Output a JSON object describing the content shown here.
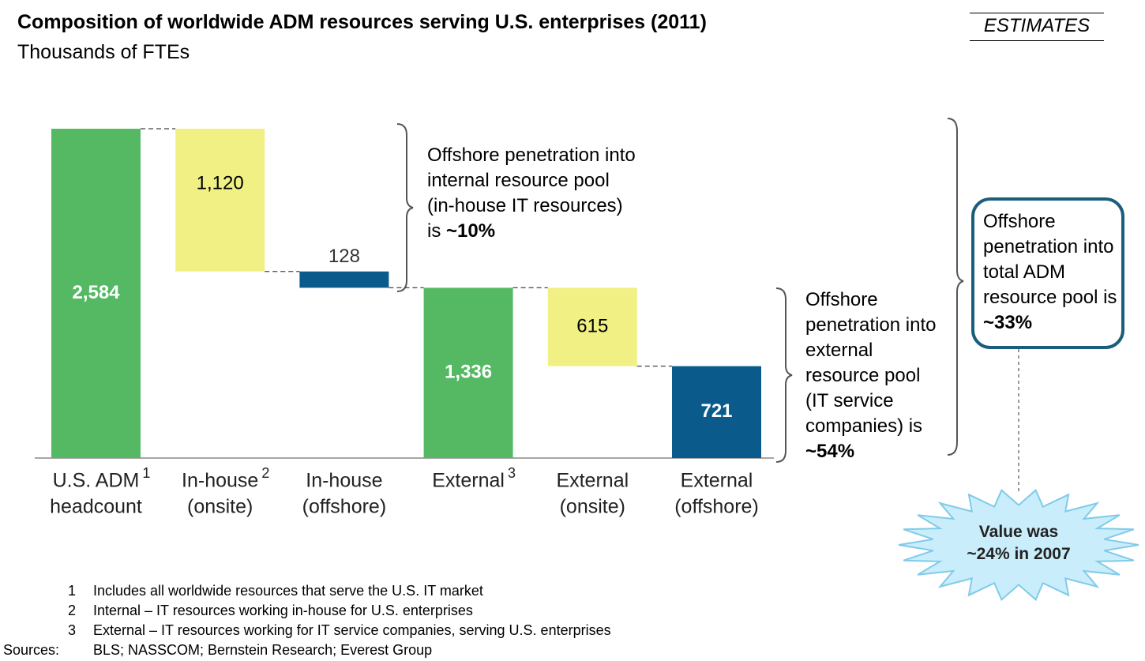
{
  "chart_data": {
    "type": "waterfall",
    "title": "Composition of worldwide ADM resources serving U.S. enterprises (2011)",
    "subtitle": "Thousands of FTEs",
    "badge": "ESTIMATES",
    "categories": [
      [
        "U.S. ADM",
        "headcount"
      ],
      [
        "In-house",
        "(onsite)"
      ],
      [
        "In-house",
        "(offshore)"
      ],
      [
        "External"
      ],
      [
        "External",
        "(onsite)"
      ],
      [
        "External",
        "(offshore)"
      ]
    ],
    "category_notes": [
      "1",
      "2",
      null,
      "3",
      null,
      null
    ],
    "kinds": [
      "total",
      "decrease",
      "decrease",
      "total",
      "decrease",
      "decrease"
    ],
    "values": [
      2584,
      1120,
      128,
      1336,
      615,
      721
    ],
    "value_labels": [
      "2,584",
      "1,120",
      "128",
      "1,336",
      "615",
      "721"
    ],
    "colors": [
      "#55b963",
      "#f0f084",
      "#0a5b8c",
      "#55b963",
      "#f0f084",
      "#0a5b8c"
    ],
    "annotations": [
      {
        "text": "Offshore penetration into internal resource pool (in-house IT resources) is",
        "bold": "~10%"
      },
      {
        "text": "Offshore penetration into external resource pool (IT service companies) is",
        "bold": "~54%"
      },
      {
        "text": "Offshore penetration into total ADM resource pool is",
        "bold": "~33%"
      }
    ],
    "callout": [
      "Value was",
      "~24% in 2007"
    ],
    "footnotes": [
      {
        "number": "1",
        "text": "Includes all worldwide resources that serve the U.S. IT market"
      },
      {
        "number": "2",
        "text": "Internal – IT resources working in-house for U.S. enterprises"
      },
      {
        "number": "3",
        "text": "External – IT resources working for IT service companies, serving U.S. enterprises"
      }
    ],
    "sources": {
      "label": "Sources:",
      "text": "BLS; NASSCOM; Bernstein Research; Everest Group"
    }
  }
}
